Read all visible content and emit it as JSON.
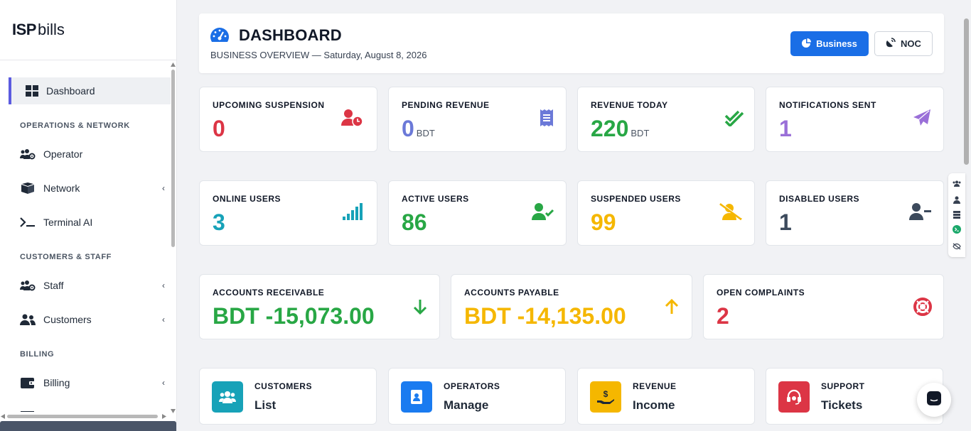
{
  "brand": {
    "bold": "ISP",
    "light": "bills"
  },
  "sidebar": {
    "dashboard": "Dashboard",
    "sections": {
      "ops": "OPERATIONS & NETWORK",
      "customers": "CUSTOMERS & STAFF",
      "billing": "BILLING"
    },
    "items": {
      "operator": "Operator",
      "network": "Network",
      "terminal": "Terminal AI",
      "staff": "Staff",
      "customers": "Customers",
      "billing": "Billing"
    },
    "chevron": "‹"
  },
  "header": {
    "title": "DASHBOARD",
    "subtitle": "BUSINESS OVERVIEW — Saturday, August 8, 2026",
    "business_label": "Business",
    "noc_label": "NOC"
  },
  "stats": {
    "upcoming_suspension": {
      "label": "UPCOMING SUSPENSION",
      "value": "0",
      "color": "#dc3545"
    },
    "pending_revenue": {
      "label": "PENDING REVENUE",
      "value": "0",
      "unit": "BDT",
      "color": "#6b79d8"
    },
    "revenue_today": {
      "label": "REVENUE TODAY",
      "value": "220",
      "unit": "BDT",
      "color": "#28a745"
    },
    "notifications_sent": {
      "label": "NOTIFICATIONS SENT",
      "value": "1",
      "color": "#9a6fd8"
    },
    "online_users": {
      "label": "ONLINE USERS",
      "value": "3",
      "color": "#17a2b8"
    },
    "active_users": {
      "label": "ACTIVE USERS",
      "value": "86",
      "color": "#28a745"
    },
    "suspended_users": {
      "label": "SUSPENDED USERS",
      "value": "99",
      "color": "#f5b700"
    },
    "disabled_users": {
      "label": "DISABLED USERS",
      "value": "1",
      "color": "#3c4a5c"
    },
    "accounts_receivable": {
      "label": "ACCOUNTS RECEIVABLE",
      "value": "BDT -15,073.00",
      "color": "#28a745"
    },
    "accounts_payable": {
      "label": "ACCOUNTS PAYABLE",
      "value": "BDT -14,135.00",
      "color": "#f5b700"
    },
    "open_complaints": {
      "label": "OPEN COMPLAINTS",
      "value": "2",
      "color": "#dc3545"
    }
  },
  "actions": {
    "customers": {
      "title": "CUSTOMERS",
      "sub": "List",
      "color": "#17a2b8"
    },
    "operators": {
      "title": "OPERATORS",
      "sub": "Manage",
      "color": "#1a7bf0"
    },
    "revenue": {
      "title": "REVENUE",
      "sub": "Income",
      "color": "#f5b700"
    },
    "support": {
      "title": "SUPPORT",
      "sub": "Tickets",
      "color": "#dc3545"
    }
  }
}
